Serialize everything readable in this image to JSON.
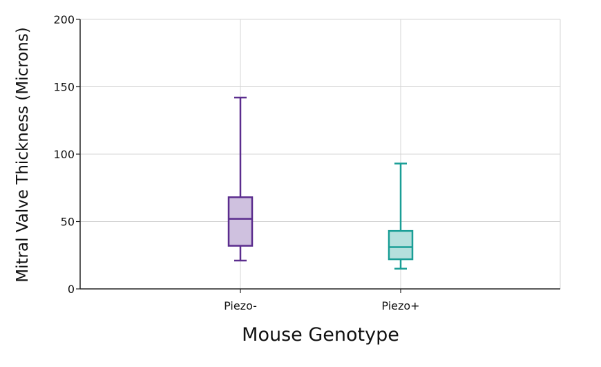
{
  "chart_data": {
    "type": "boxplot",
    "xlabel": "Mouse Genotype",
    "ylabel": "Mitral Valve Thickness (Microns)",
    "ylim": [
      0,
      200
    ],
    "yticks": [
      0,
      50,
      100,
      150,
      200
    ],
    "grid": true,
    "categories": [
      "Piezo-",
      "Piezo+"
    ],
    "boxes": [
      {
        "category": "Piezo-",
        "min": 21,
        "q1": 32,
        "median": 52,
        "q3": 68,
        "max": 142,
        "color": "#5b2d8e",
        "fill": "#cfc1df"
      },
      {
        "category": "Piezo+",
        "min": 15,
        "q1": 22,
        "median": 31,
        "q3": 43,
        "max": 93,
        "color": "#1a9e96",
        "fill": "#b5e0dd"
      }
    ]
  }
}
